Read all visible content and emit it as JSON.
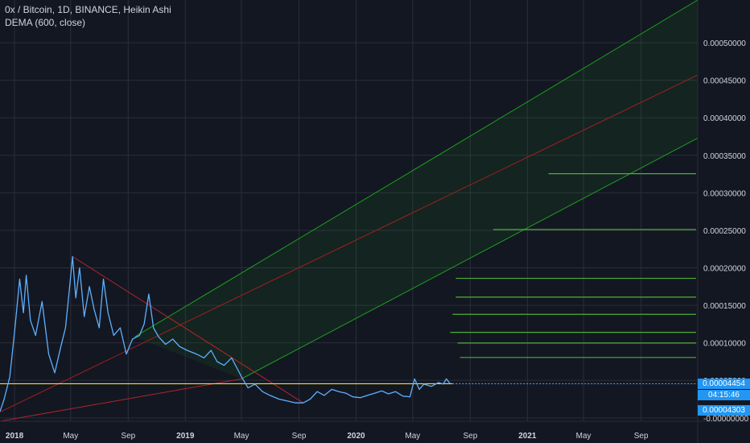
{
  "header": {
    "title": "0x / Bitcoin, 1D, BINANCE, Heikin Ashi",
    "indicator": "DEMA (600, close)"
  },
  "colors": {
    "background": "#131722",
    "grid": "#2a2e39",
    "price_line": "#5eb0ff",
    "channel_green": "#1e9e1e",
    "channel_mid": "#a11f1f",
    "trend_down": "#b3242a",
    "level_lines": "#4caf35",
    "support": "#f2e03c",
    "tag_blue": "#2196f3"
  },
  "price_tags": {
    "last_price": "0.00004454",
    "countdown": "04:15:46",
    "dema_value": "0.00004303"
  },
  "chart_data": {
    "type": "line",
    "title": "0x / Bitcoin, 1D, BINANCE, Heikin Ashi",
    "xlabel": "",
    "ylabel": "",
    "x_ticks": [
      {
        "date": "2018-01-01",
        "label": "2018",
        "bold": true
      },
      {
        "date": "2018-05-01",
        "label": "May",
        "bold": false
      },
      {
        "date": "2018-09-01",
        "label": "Sep",
        "bold": false
      },
      {
        "date": "2019-01-01",
        "label": "2019",
        "bold": true
      },
      {
        "date": "2019-05-01",
        "label": "May",
        "bold": false
      },
      {
        "date": "2019-09-01",
        "label": "Sep",
        "bold": false
      },
      {
        "date": "2020-01-01",
        "label": "2020",
        "bold": true
      },
      {
        "date": "2020-05-01",
        "label": "May",
        "bold": false
      },
      {
        "date": "2020-09-01",
        "label": "Sep",
        "bold": false
      },
      {
        "date": "2021-01-01",
        "label": "2021",
        "bold": true
      },
      {
        "date": "2021-05-01",
        "label": "May",
        "bold": false
      },
      {
        "date": "2021-09-01",
        "label": "Sep",
        "bold": false
      }
    ],
    "y_ticks": [
      {
        "value": 0.0005,
        "label": "0.00050000"
      },
      {
        "value": 0.00045,
        "label": "0.00045000"
      },
      {
        "value": 0.0004,
        "label": "0.00040000"
      },
      {
        "value": 0.00035,
        "label": "0.00035000"
      },
      {
        "value": 0.0003,
        "label": "0.00030000"
      },
      {
        "value": 0.00025,
        "label": "0.00025000"
      },
      {
        "value": 0.0002,
        "label": "0.00020000"
      },
      {
        "value": 0.00015,
        "label": "0.00015000"
      },
      {
        "value": 0.0001,
        "label": "0.00010000"
      },
      {
        "value": 5e-05,
        "label": "0.00005000"
      },
      {
        "value": -1e-08,
        "label": "-0.00000000"
      }
    ],
    "ylim": [
      -4.5e-06,
      0.000557
    ],
    "xlim": [
      "2017-12-01",
      "2021-12-31"
    ],
    "grid": true,
    "series": [
      {
        "points": [
          [
            "2017-12-01",
            8.5e-06
          ],
          [
            "2017-12-10",
            2.5e-05
          ],
          [
            "2017-12-22",
            5.5e-05
          ],
          [
            "2018-01-02",
            0.00012
          ],
          [
            "2018-01-12",
            0.000185
          ],
          [
            "2018-01-20",
            0.00014
          ],
          [
            "2018-01-26",
            0.00019
          ],
          [
            "2018-02-04",
            0.00013
          ],
          [
            "2018-02-15",
            0.00011
          ],
          [
            "2018-03-01",
            0.000155
          ],
          [
            "2018-03-15",
            8.5e-05
          ],
          [
            "2018-03-28",
            6e-05
          ],
          [
            "2018-04-10",
            9.5e-05
          ],
          [
            "2018-04-20",
            0.00012
          ],
          [
            "2018-04-28",
            0.00017
          ],
          [
            "2018-05-05",
            0.000215
          ],
          [
            "2018-05-12",
            0.00016
          ],
          [
            "2018-05-20",
            0.0002
          ],
          [
            "2018-05-30",
            0.000135
          ],
          [
            "2018-06-10",
            0.000175
          ],
          [
            "2018-06-20",
            0.000145
          ],
          [
            "2018-07-01",
            0.00012
          ],
          [
            "2018-07-10",
            0.000185
          ],
          [
            "2018-07-20",
            0.00014
          ],
          [
            "2018-08-01",
            0.00011
          ],
          [
            "2018-08-15",
            0.00012
          ],
          [
            "2018-08-28",
            8.5e-05
          ],
          [
            "2018-09-10",
            0.000105
          ],
          [
            "2018-09-25",
            0.00011
          ],
          [
            "2018-10-05",
            0.000125
          ],
          [
            "2018-10-15",
            0.000165
          ],
          [
            "2018-10-25",
            0.00012
          ],
          [
            "2018-11-05",
            0.000108
          ],
          [
            "2018-11-20",
            9.8e-05
          ],
          [
            "2018-12-05",
            0.000105
          ],
          [
            "2018-12-20",
            9.5e-05
          ],
          [
            "2019-01-05",
            9e-05
          ],
          [
            "2019-01-25",
            8.5e-05
          ],
          [
            "2019-02-10",
            8e-05
          ],
          [
            "2019-02-25",
            9e-05
          ],
          [
            "2019-03-10",
            7.5e-05
          ],
          [
            "2019-03-25",
            7e-05
          ],
          [
            "2019-04-10",
            8e-05
          ],
          [
            "2019-04-20",
            6.8e-05
          ],
          [
            "2019-05-01",
            5.5e-05
          ],
          [
            "2019-05-15",
            4e-05
          ],
          [
            "2019-05-30",
            4.5e-05
          ],
          [
            "2019-06-15",
            3.5e-05
          ],
          [
            "2019-07-01",
            3e-05
          ],
          [
            "2019-07-20",
            2.5e-05
          ],
          [
            "2019-08-10",
            2.2e-05
          ],
          [
            "2019-08-25",
            2e-05
          ],
          [
            "2019-09-10",
            2e-05
          ],
          [
            "2019-09-25",
            2.5e-05
          ],
          [
            "2019-10-10",
            3.5e-05
          ],
          [
            "2019-10-25",
            3e-05
          ],
          [
            "2019-11-10",
            3.8e-05
          ],
          [
            "2019-11-25",
            3.5e-05
          ],
          [
            "2019-12-10",
            3.3e-05
          ],
          [
            "2019-12-25",
            2.8e-05
          ],
          [
            "2020-01-10",
            2.7e-05
          ],
          [
            "2020-01-25",
            3e-05
          ],
          [
            "2020-02-10",
            3.3e-05
          ],
          [
            "2020-02-25",
            3.6e-05
          ],
          [
            "2020-03-10",
            3.2e-05
          ],
          [
            "2020-03-25",
            3.5e-05
          ],
          [
            "2020-04-10",
            2.9e-05
          ],
          [
            "2020-04-25",
            2.8e-05
          ],
          [
            "2020-05-05",
            5.2e-05
          ],
          [
            "2020-05-15",
            3.8e-05
          ],
          [
            "2020-05-25",
            4.5e-05
          ],
          [
            "2020-06-10",
            4.2e-05
          ],
          [
            "2020-06-25",
            4.7e-05
          ],
          [
            "2020-07-05",
            4.5e-05
          ],
          [
            "2020-07-12",
            5.2e-05
          ],
          [
            "2020-07-20",
            4.54e-05
          ]
        ]
      }
    ],
    "annotations": {
      "support_level": 4.55e-05,
      "channel": {
        "lower": [
          [
            "2017-12-01",
            -4.5e-06
          ],
          [
            "2021-12-31",
            0.000373
          ]
        ],
        "middle": [
          [
            "2017-12-01",
            7.8e-06
          ],
          [
            "2021-12-31",
            0.000457
          ]
        ],
        "upper_start": [
          "2018-09-15",
          0.000108
        ],
        "upper_end": [
          "2021-12-31",
          0.000557
        ],
        "lower_start": [
          "2019-05-01",
          5.2e-05
        ]
      },
      "downtrend": [
        [
          "2018-05-05",
          0.000215
        ],
        [
          "2019-09-10",
          2e-05
        ]
      ],
      "resistance_levels": [
        {
          "price": 0.0003255,
          "from": "2021-02-15"
        },
        {
          "price": 0.000251,
          "from": "2020-10-20"
        },
        {
          "price": 0.000186,
          "from": "2020-08-01"
        },
        {
          "price": 0.000161,
          "from": "2020-08-01"
        },
        {
          "price": 0.000138,
          "from": "2020-07-25"
        },
        {
          "price": 0.000114,
          "from": "2020-07-20"
        },
        {
          "price": 9.98e-05,
          "from": "2020-08-05"
        },
        {
          "price": 8.05e-05,
          "from": "2020-08-10"
        }
      ]
    }
  }
}
